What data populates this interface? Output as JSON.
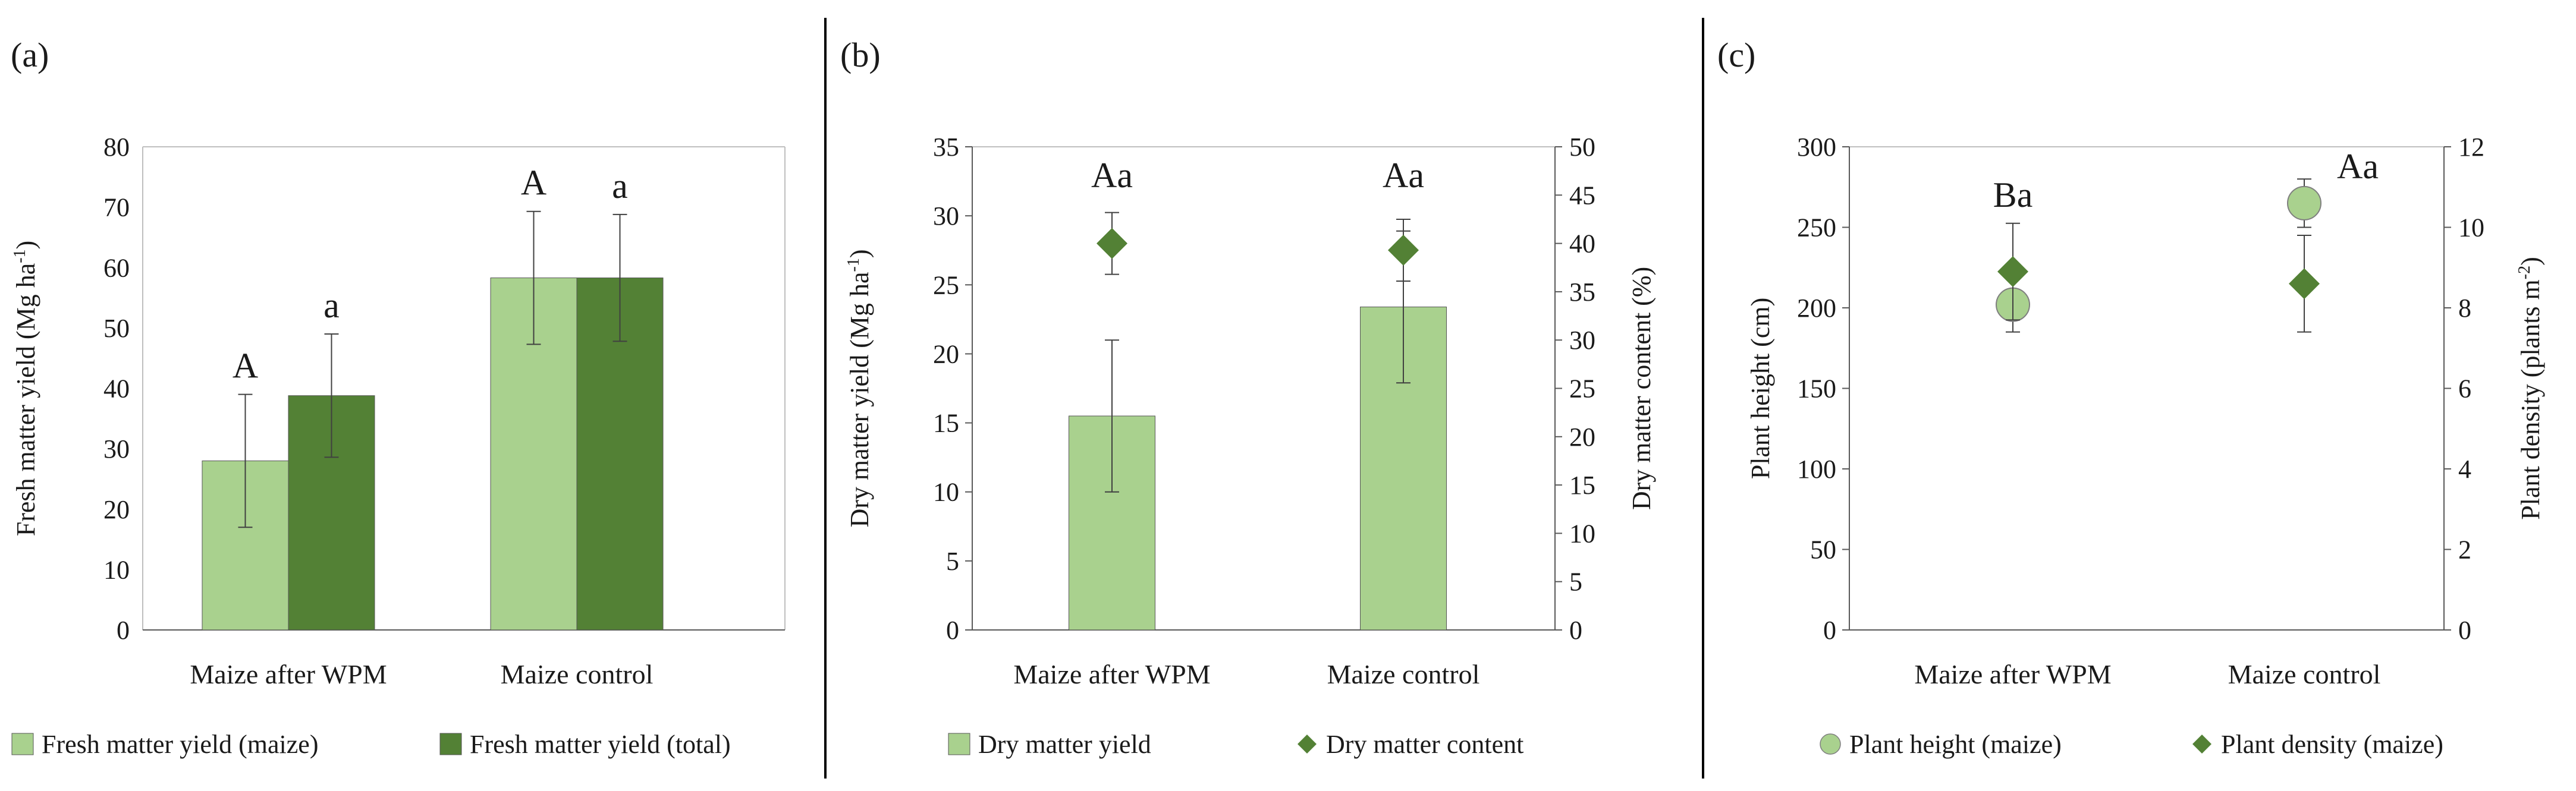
{
  "colors": {
    "light": "#a9d18e",
    "dark": "#538135",
    "axis": "#595959",
    "error": "#404040",
    "separator": "#000000"
  },
  "chart_data": [
    {
      "panel": "(a)",
      "type": "bar",
      "categories": [
        "Maize after WPM",
        "Maize control"
      ],
      "ylabel_left": "Fresh matter yield (Mg ha",
      "ylabel_left_sup": "-1",
      "ylabel_left_end": ")",
      "ylim_left": [
        0,
        80
      ],
      "yticks_left": [
        0,
        10,
        20,
        30,
        40,
        50,
        60,
        70,
        80
      ],
      "series": [
        {
          "name": "Fresh matter yield (maize)",
          "marker": "bar",
          "color": "light",
          "axis": "left",
          "values": [
            28,
            58.3
          ],
          "errors": [
            11,
            11
          ],
          "letters": [
            "A",
            "A"
          ]
        },
        {
          "name": "Fresh matter yield (total)",
          "marker": "bar",
          "color": "dark",
          "axis": "left",
          "values": [
            38.8,
            58.3
          ],
          "errors": [
            10.2,
            10.5
          ],
          "letters": [
            "a",
            "a"
          ]
        }
      ],
      "legend": "bottom"
    },
    {
      "panel": "(b)",
      "type": "bar",
      "categories": [
        "Maize after WPM",
        "Maize control"
      ],
      "ylabel_left": "Dry matter yield (Mg ha",
      "ylabel_left_sup": "-1",
      "ylabel_left_end": ")",
      "ylabel_right": "Dry matter content (%)",
      "ylim_left": [
        0,
        35
      ],
      "yticks_left": [
        0,
        5,
        10,
        15,
        20,
        25,
        30,
        35
      ],
      "ylim_right": [
        0,
        50
      ],
      "yticks_right": [
        0,
        5,
        10,
        15,
        20,
        25,
        30,
        35,
        40,
        45,
        50
      ],
      "series": [
        {
          "name": "Dry matter yield",
          "marker": "bar",
          "color": "light",
          "axis": "left",
          "values": [
            15.5,
            23.4
          ],
          "errors": [
            5.5,
            5.5
          ]
        },
        {
          "name": "Dry matter content",
          "marker": "diamond",
          "color": "dark",
          "axis": "right",
          "values": [
            40,
            39.3
          ],
          "errors": [
            3.2,
            3.2
          ]
        }
      ],
      "group_letters": [
        "Aa",
        "Aa"
      ],
      "legend": "bottom"
    },
    {
      "panel": "(c)",
      "type": "scatter",
      "categories": [
        "Maize after WPM",
        "Maize control"
      ],
      "ylabel_left": "Plant height (cm)",
      "ylabel_right": "Plant density (plants m",
      "ylabel_right_sup": "-2",
      "ylabel_right_end": ")",
      "ylim_left": [
        0,
        300
      ],
      "yticks_left": [
        0,
        50,
        100,
        150,
        200,
        250,
        300
      ],
      "ylim_right": [
        0,
        12
      ],
      "yticks_right": [
        0,
        2,
        4,
        6,
        8,
        10,
        12
      ],
      "series": [
        {
          "name": "Plant height (maize)",
          "marker": "circle",
          "color": "light",
          "axis": "left",
          "values": [
            202,
            265
          ],
          "errors": [
            17,
            15
          ]
        },
        {
          "name": "Plant density (maize)",
          "marker": "diamond",
          "color": "dark",
          "axis": "right",
          "values": [
            8.9,
            8.6
          ],
          "errors": [
            1.2,
            1.2
          ]
        }
      ],
      "group_letters": [
        "Ba",
        "Aa"
      ],
      "legend": "bottom"
    }
  ]
}
